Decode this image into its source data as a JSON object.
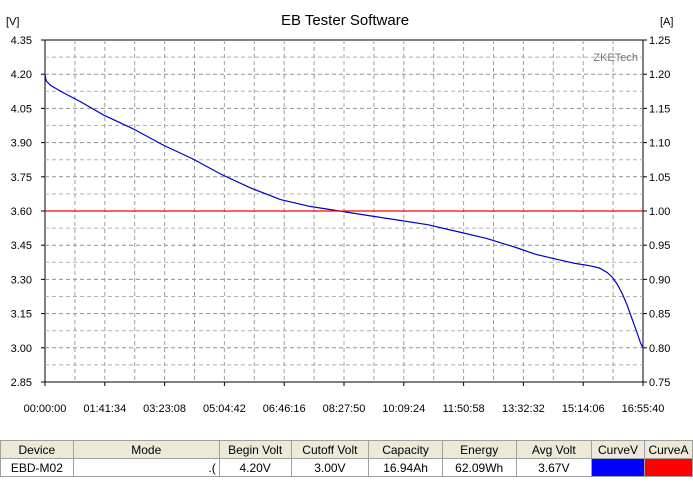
{
  "window": {
    "title": "EB Tester Software"
  },
  "chart_data": {
    "type": "line",
    "title": "EB Tester Software",
    "watermark": "ZKETech",
    "ylabel_left": "[V]",
    "ylabel_right": "[A]",
    "ylim_left": [
      2.85,
      4.35
    ],
    "ylim_right": [
      0.75,
      1.25
    ],
    "yticks_left": [
      "4.35",
      "4.20",
      "4.05",
      "3.90",
      "3.75",
      "3.60",
      "3.45",
      "3.30",
      "3.15",
      "3.00",
      "2.85"
    ],
    "yticks_right": [
      "1.25",
      "1.20",
      "1.15",
      "1.10",
      "1.05",
      "1.00",
      "0.95",
      "0.90",
      "0.85",
      "0.80",
      "0.75"
    ],
    "xlim_seconds": [
      0,
      60940
    ],
    "xticks": [
      "00:00:00",
      "01:41:34",
      "03:23:08",
      "05:04:42",
      "06:46:16",
      "08:27:50",
      "10:09:24",
      "11:50:58",
      "13:32:32",
      "15:14:06",
      "16:55:40"
    ],
    "grid": true,
    "series": [
      {
        "unit": "V",
        "axis": "left",
        "color": "#0000c8",
        "x": [
          0,
          120,
          600,
          1800,
          3600,
          6000,
          9000,
          12000,
          15000,
          18000,
          21000,
          24000,
          27000,
          30000,
          33000,
          36000,
          39000,
          42000,
          45000,
          48000,
          50000,
          52000,
          54000,
          55500,
          56500,
          57300,
          57800,
          58300,
          58800,
          59300,
          59800,
          60300,
          60700,
          60940
        ],
        "y": [
          4.2,
          4.17,
          4.15,
          4.12,
          4.08,
          4.02,
          3.96,
          3.89,
          3.83,
          3.76,
          3.7,
          3.65,
          3.62,
          3.6,
          3.58,
          3.56,
          3.54,
          3.51,
          3.48,
          3.44,
          3.41,
          3.39,
          3.37,
          3.36,
          3.35,
          3.33,
          3.31,
          3.28,
          3.24,
          3.19,
          3.13,
          3.07,
          3.02,
          3.0
        ]
      },
      {
        "unit": "A",
        "axis": "right",
        "color": "#ff0000",
        "x": [
          0,
          60940
        ],
        "y": [
          1.0,
          1.0
        ]
      }
    ]
  },
  "table": {
    "headers": [
      "Device",
      "Mode",
      "Begin Volt",
      "Cutoff Volt",
      "Capacity",
      "Energy",
      "Avg Volt",
      "CurveV",
      "CurveA"
    ],
    "row": {
      "device": "EBD-M02",
      "mode": ".(",
      "begin_volt": "4.20V",
      "cutoff_volt": "3.00V",
      "capacity": "16.94Ah",
      "energy": "62.09Wh",
      "avg_volt": "3.67V",
      "curve_v_color": "#0000ff",
      "curve_a_color": "#ff0000"
    }
  }
}
